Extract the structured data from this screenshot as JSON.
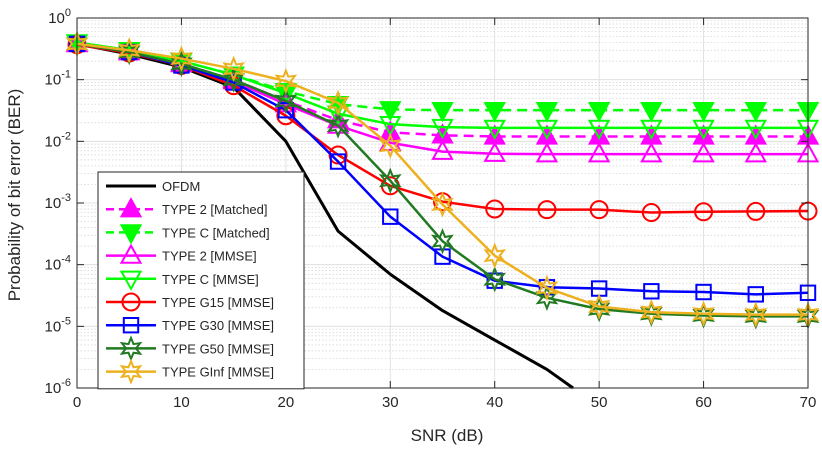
{
  "chart_data": {
    "type": "line",
    "title": "",
    "xlabel": "SNR (dB)",
    "ylabel": "Probability of bit error (BER)",
    "xlim": [
      0,
      70
    ],
    "ylim": [
      1e-06,
      1
    ],
    "yscale": "log",
    "grid": true,
    "legend_position": "bottom-left",
    "x_ticks": [
      0,
      10,
      20,
      30,
      40,
      50,
      60,
      70
    ],
    "x_tick_labels": [
      "0",
      "10",
      "20",
      "30",
      "40",
      "50",
      "60",
      "70"
    ],
    "y_ticks": [
      1e-06,
      1e-05,
      0.0001,
      0.001,
      0.01,
      0.1,
      1
    ],
    "y_tick_labels": [
      {
        "base": "10",
        "exp": "-6"
      },
      {
        "base": "10",
        "exp": "-5"
      },
      {
        "base": "10",
        "exp": "-4"
      },
      {
        "base": "10",
        "exp": "-3"
      },
      {
        "base": "10",
        "exp": "-2"
      },
      {
        "base": "10",
        "exp": "-1"
      },
      {
        "base": "10",
        "exp": "0"
      }
    ],
    "series": [
      {
        "name": "OFDM",
        "color": "#000000",
        "dash": "solid",
        "marker": "none",
        "marker_filled": false,
        "x": [
          0,
          5,
          10,
          15,
          20,
          25,
          30,
          35,
          40,
          45,
          47.5
        ],
        "y": [
          0.38,
          0.26,
          0.16,
          0.075,
          0.01,
          0.00035,
          7e-05,
          1.8e-05,
          6e-06,
          2e-06,
          1e-06
        ]
      },
      {
        "name": "TYPE 2 [Matched]",
        "color": "#ff00ff",
        "dash": "dashed",
        "marker": "triangle-up",
        "marker_filled": true,
        "x": [
          0,
          5,
          10,
          15,
          20,
          25,
          30,
          35,
          40,
          45,
          50,
          55,
          60,
          65,
          70
        ],
        "y": [
          0.38,
          0.28,
          0.18,
          0.1,
          0.045,
          0.022,
          0.014,
          0.0125,
          0.012,
          0.012,
          0.012,
          0.012,
          0.012,
          0.012,
          0.012
        ]
      },
      {
        "name": "TYPE C [Matched]",
        "color": "#00ff00",
        "dash": "dashed",
        "marker": "triangle-down",
        "marker_filled": true,
        "x": [
          0,
          5,
          10,
          15,
          20,
          25,
          30,
          35,
          40,
          45,
          50,
          55,
          60,
          65,
          70
        ],
        "y": [
          0.4,
          0.3,
          0.2,
          0.12,
          0.065,
          0.04,
          0.033,
          0.032,
          0.032,
          0.032,
          0.032,
          0.032,
          0.032,
          0.032,
          0.032
        ]
      },
      {
        "name": "TYPE 2 [MMSE]",
        "color": "#ff00ff",
        "dash": "solid",
        "marker": "triangle-up",
        "marker_filled": false,
        "x": [
          0,
          5,
          10,
          15,
          20,
          25,
          30,
          35,
          40,
          45,
          50,
          55,
          60,
          65,
          70
        ],
        "y": [
          0.38,
          0.28,
          0.18,
          0.095,
          0.04,
          0.018,
          0.0095,
          0.0068,
          0.0063,
          0.0062,
          0.0062,
          0.0062,
          0.0062,
          0.0062,
          0.0062
        ]
      },
      {
        "name": "TYPE C [MMSE]",
        "color": "#00ff00",
        "dash": "solid",
        "marker": "triangle-down",
        "marker_filled": false,
        "x": [
          0,
          5,
          10,
          15,
          20,
          25,
          30,
          35,
          40,
          45,
          50,
          55,
          60,
          65,
          70
        ],
        "y": [
          0.4,
          0.3,
          0.2,
          0.12,
          0.06,
          0.028,
          0.019,
          0.017,
          0.0165,
          0.0165,
          0.0165,
          0.0165,
          0.0165,
          0.0165,
          0.0165
        ]
      },
      {
        "name": "TYPE G15 [MMSE]",
        "color": "#ff0000",
        "dash": "solid",
        "marker": "circle",
        "marker_filled": false,
        "x": [
          0,
          5,
          10,
          15,
          20,
          25,
          30,
          35,
          40,
          45,
          50,
          55,
          60,
          65,
          70
        ],
        "y": [
          0.37,
          0.27,
          0.17,
          0.08,
          0.026,
          0.006,
          0.0019,
          0.00105,
          0.0008,
          0.00078,
          0.00078,
          0.0007,
          0.00072,
          0.00073,
          0.00074
        ]
      },
      {
        "name": "TYPE G30 [MMSE]",
        "color": "#0000ff",
        "dash": "solid",
        "marker": "square",
        "marker_filled": false,
        "x": [
          0,
          5,
          10,
          15,
          20,
          25,
          30,
          35,
          40,
          45,
          50,
          55,
          60,
          65,
          70
        ],
        "y": [
          0.38,
          0.28,
          0.17,
          0.09,
          0.032,
          0.0047,
          0.0006,
          0.000135,
          5.5e-05,
          4.3e-05,
          4.1e-05,
          3.7e-05,
          3.6e-05,
          3.3e-05,
          3.5e-05
        ]
      },
      {
        "name": "TYPE G50 [MMSE]",
        "color": "#217a21",
        "dash": "solid",
        "marker": "star6",
        "marker_filled": false,
        "x": [
          0,
          5,
          10,
          15,
          20,
          25,
          30,
          35,
          40,
          45,
          50,
          55,
          60,
          65,
          70
        ],
        "y": [
          0.38,
          0.28,
          0.18,
          0.1,
          0.045,
          0.018,
          0.0023,
          0.00024,
          5.8e-05,
          2.9e-05,
          1.9e-05,
          1.6e-05,
          1.5e-05,
          1.45e-05,
          1.45e-05
        ]
      },
      {
        "name": "TYPE GInf [MMSE]",
        "color": "#edb120",
        "dash": "solid",
        "marker": "star6",
        "marker_filled": false,
        "x": [
          0,
          5,
          10,
          15,
          20,
          25,
          30,
          35,
          40,
          45,
          50,
          55,
          60,
          65,
          70
        ],
        "y": [
          0.38,
          0.3,
          0.22,
          0.15,
          0.095,
          0.042,
          0.0085,
          0.00095,
          0.00014,
          4.2e-05,
          2.1e-05,
          1.7e-05,
          1.6e-05,
          1.55e-05,
          1.55e-05
        ]
      }
    ]
  }
}
